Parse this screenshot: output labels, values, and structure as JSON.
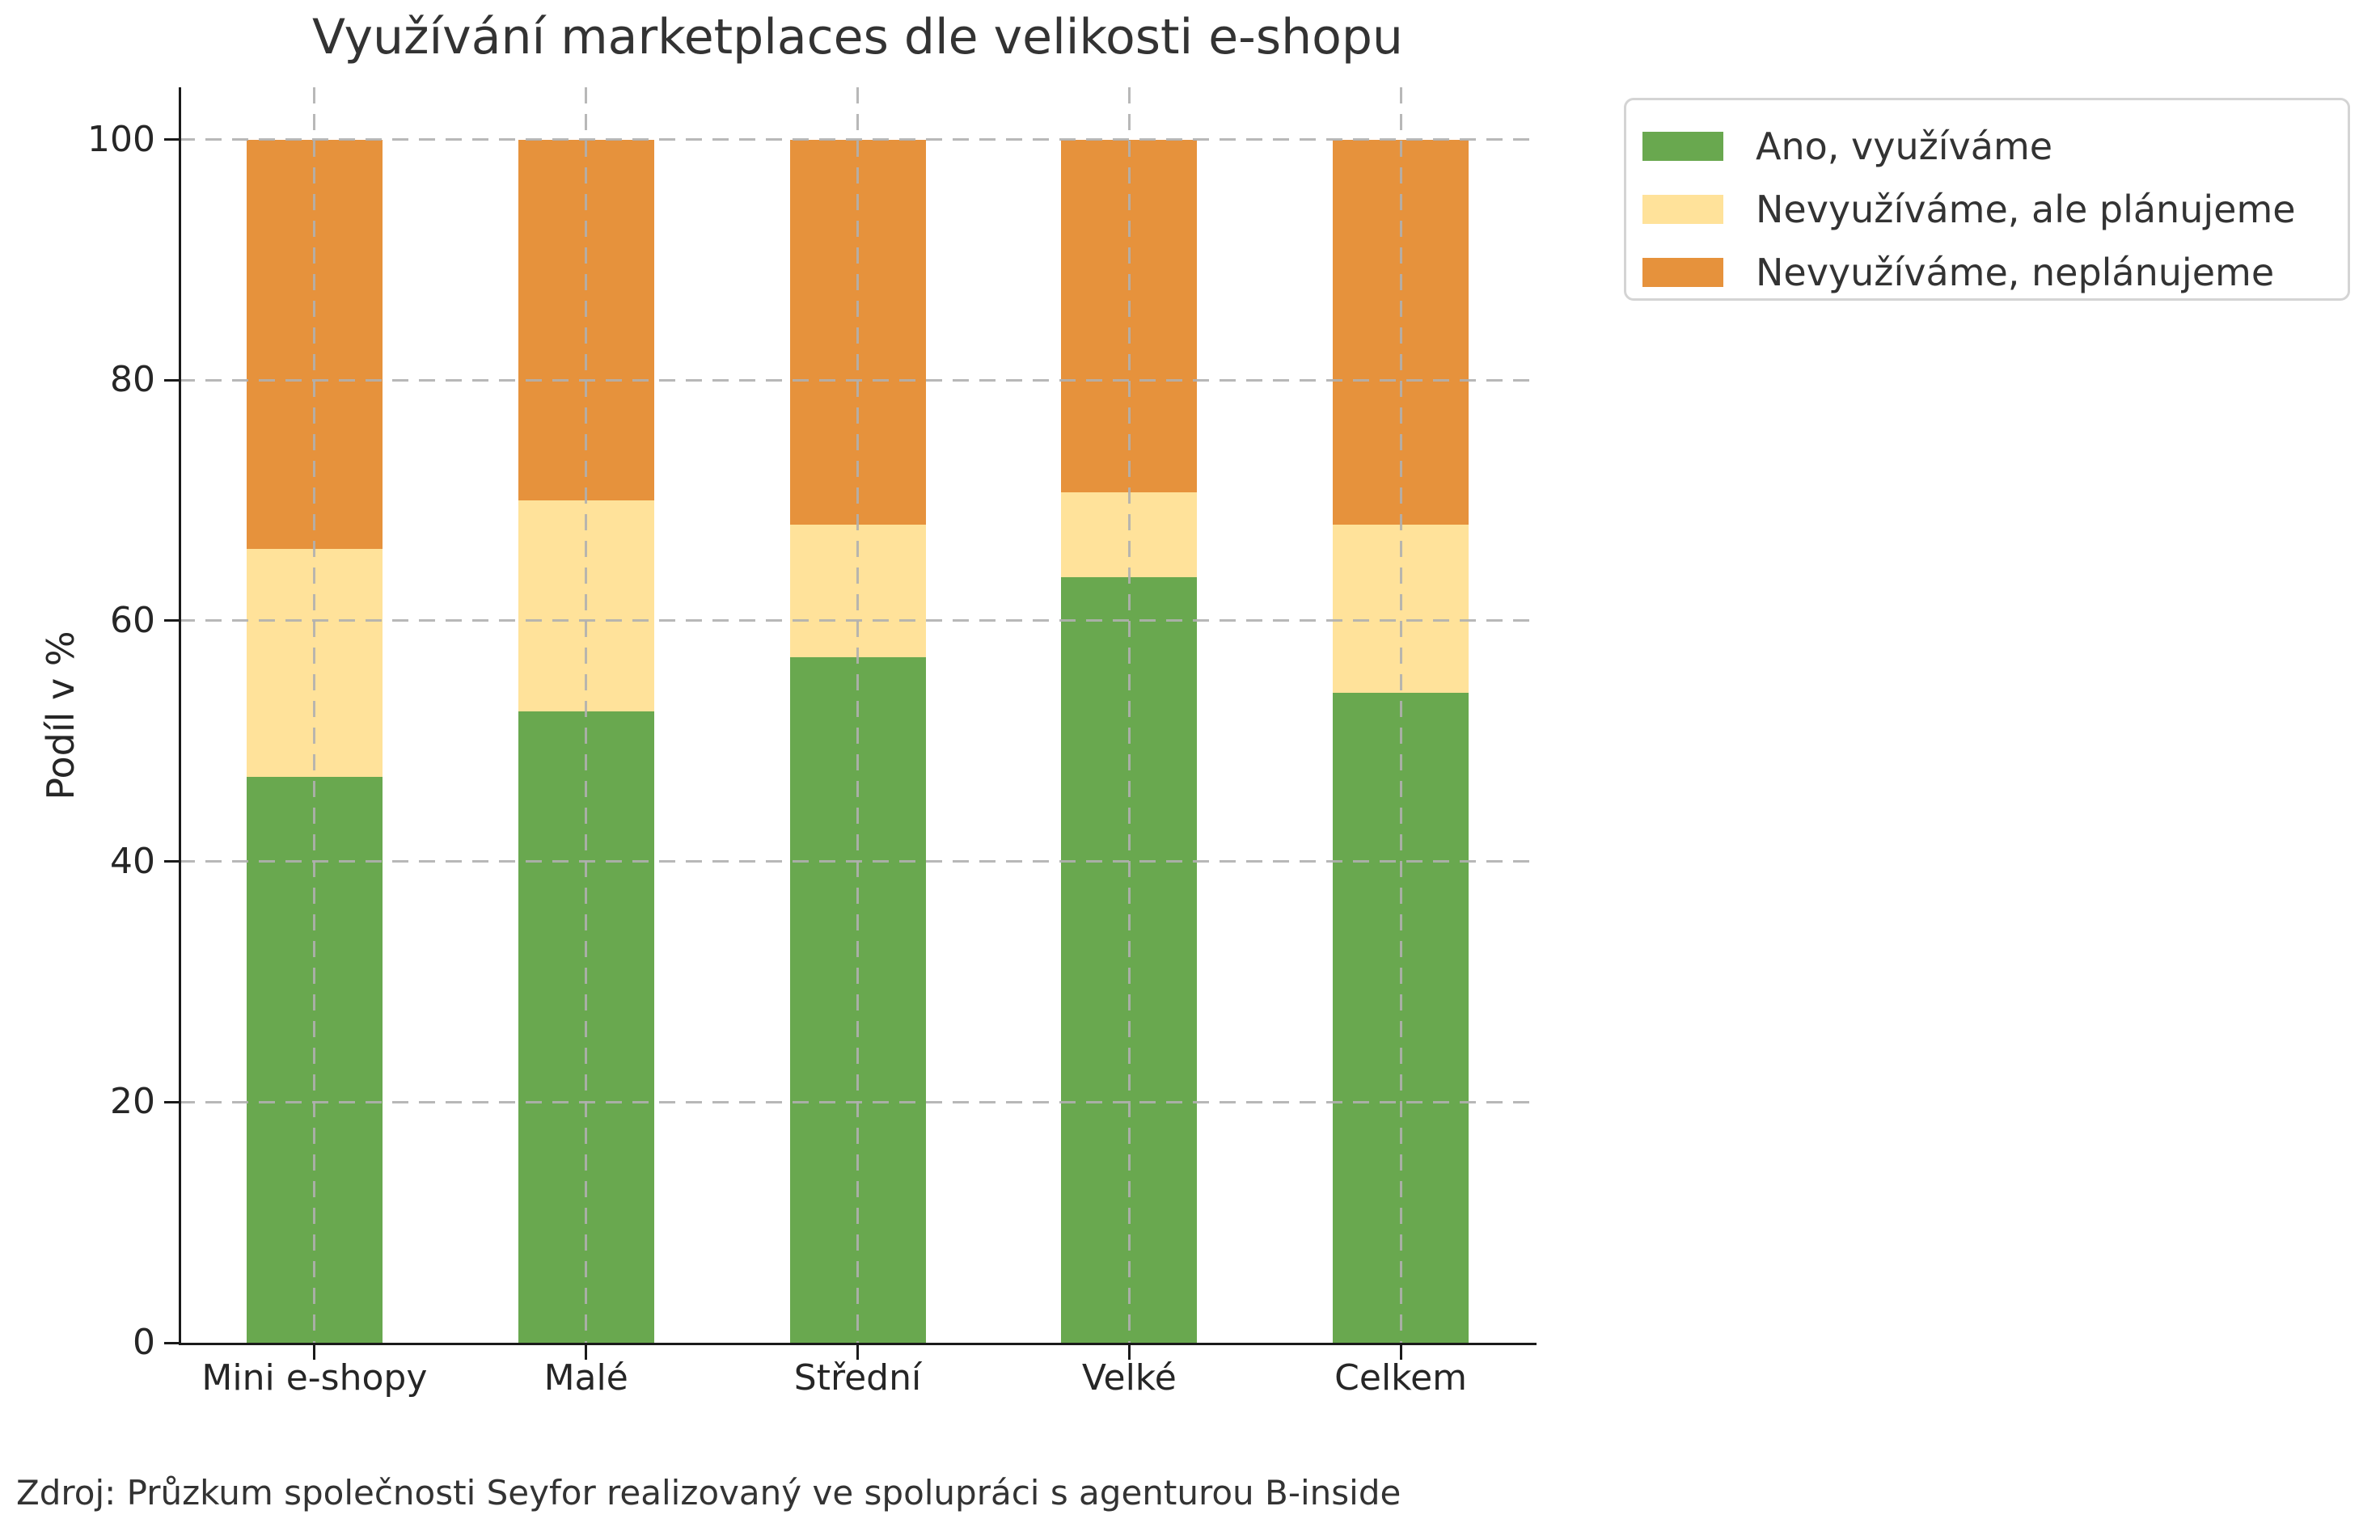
{
  "title": "Využívání marketplaces dle velikosti e-shopu",
  "source_note": "Zdroj: Průzkum společnosti Seyfor realizovaný ve spolupráci s agenturou B-inside",
  "chart_data": {
    "type": "bar",
    "stacked": true,
    "title": "Využívání marketplaces dle velikosti e-shopu",
    "categories": [
      "Mini e-shopy",
      "Malé",
      "Střední",
      "Velké",
      "Celkem"
    ],
    "series": [
      {
        "name": "Ano, využíváme",
        "color": "#69a84f",
        "values": [
          47,
          52.5,
          57,
          63.6,
          54
        ]
      },
      {
        "name": "Nevyužíváme, ale plánujeme",
        "color": "#ffe29a",
        "values": [
          19,
          17.5,
          11,
          7.1,
          14
        ]
      },
      {
        "name": "Nevyužíváme, neplánujeme",
        "color": "#e6923c",
        "values": [
          34,
          30,
          32,
          29.3,
          32
        ]
      }
    ],
    "xlabel": "",
    "ylabel": "Podíl v %",
    "yticks": [
      0,
      20,
      40,
      60,
      80,
      100
    ],
    "ylim": [
      0,
      104.3
    ],
    "grid": true,
    "grid_style": "dashed",
    "legend_position": "upper right outside plot",
    "annotation": "Zdroj: Průzkum společnosti Seyfor realizovaný ve spolupráci s agenturou B-inside"
  }
}
